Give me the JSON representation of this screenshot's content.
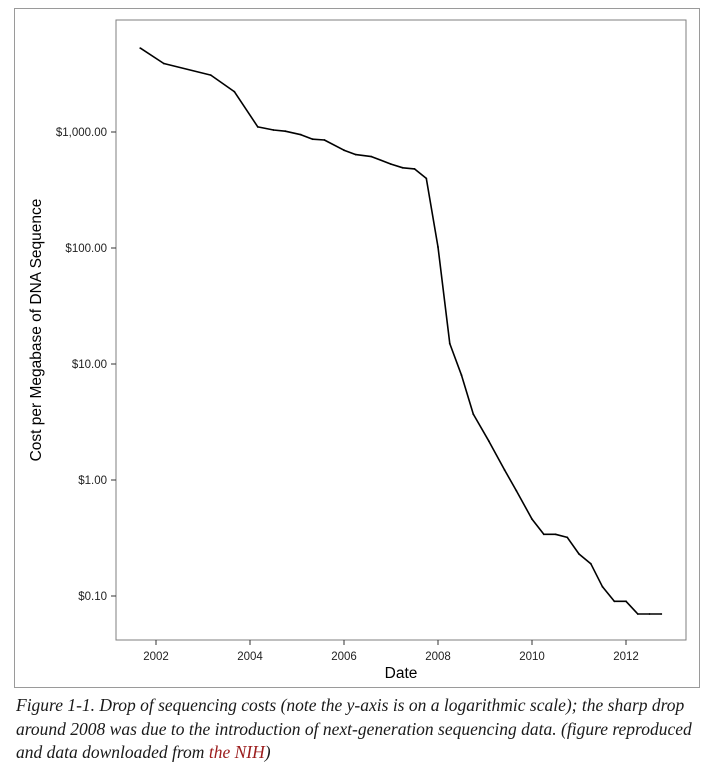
{
  "chart_data": {
    "type": "line",
    "xlabel": "Date",
    "ylabel": "Cost per Megabase of DNA Sequence",
    "y_scale": "log",
    "grid": false,
    "legend": "none",
    "line_color": "#000000",
    "x_ticks": [
      "2002",
      "2004",
      "2006",
      "2008",
      "2010",
      "2012"
    ],
    "y_ticks": [
      "$1,000.00",
      "$100.00",
      "$10.00",
      "$1.00",
      "$0.10"
    ],
    "x_range": [
      "2001-03",
      "2013-03"
    ],
    "ylim": [
      0.045,
      13000
    ],
    "series": [
      {
        "x": [
          "2001-09",
          "2002-03",
          "2003-03",
          "2003-09",
          "2004-03",
          "2004-07",
          "2004-10",
          "2005-02",
          "2005-05",
          "2005-08",
          "2006-01",
          "2006-04",
          "2006-08",
          "2007-01",
          "2007-04",
          "2007-07",
          "2007-10",
          "2008-01",
          "2008-04",
          "2008-07",
          "2008-10",
          "2009-02",
          "2009-06",
          "2009-09",
          "2010-01",
          "2010-04",
          "2010-07",
          "2010-10",
          "2011-01",
          "2011-04",
          "2011-07",
          "2011-10",
          "2012-01",
          "2012-04",
          "2012-07",
          "2012-10"
        ],
        "y": [
          5292,
          3898,
          3094,
          2231,
          1107,
          1040,
          1016,
          947,
          867,
          853,
          697,
          639,
          614,
          529,
          491,
          481,
          398,
          102,
          15.0,
          8.0,
          3.7,
          2.16,
          1.22,
          0.81,
          0.46,
          0.34,
          0.34,
          0.32,
          0.23,
          0.19,
          0.12,
          0.09,
          0.09,
          0.07,
          0.07,
          0.07
        ]
      }
    ]
  },
  "caption": {
    "prefix": "Figure 1-1. Drop of sequencing costs (note the y-axis is on a logarithmic scale); the sharp drop around 2008 was due to the introduction of next-generation sequencing data. (figure reproduced and data downloaded from ",
    "link_text": "the NIH",
    "suffix": ")"
  }
}
